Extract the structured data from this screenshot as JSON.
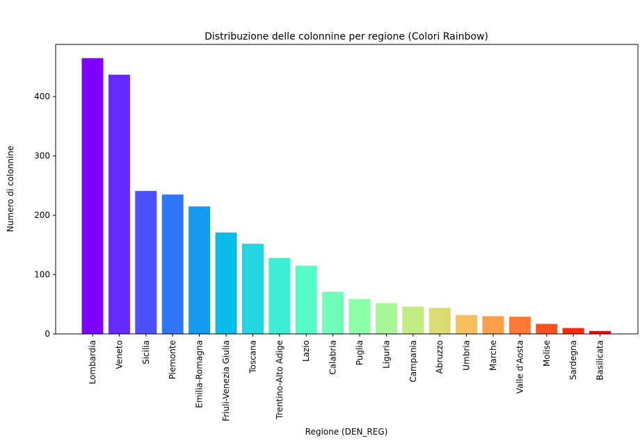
{
  "chart_data": {
    "type": "bar",
    "title": "Distribuzione delle colonnine per regione (Colori Rainbow)",
    "xlabel": "Regione (DEN_REG)",
    "ylabel": "Numero di colonnine",
    "ylim": [
      0,
      488
    ],
    "yticks": [
      "0",
      "100",
      "200",
      "300",
      "400"
    ],
    "grid": false,
    "categories": [
      "Lombardia",
      "Veneto",
      "Sicilia",
      "Piemonte",
      "Emilia-Romagna",
      "Friuli-Venezia Giulia",
      "Toscana",
      "Trentino-Alto Adige",
      "Lazio",
      "Calabria",
      "Puglia",
      "Liguria",
      "Campania",
      "Abruzzo",
      "Umbria",
      "Marche",
      "Valle d'Aosta",
      "Molise",
      "Sardegna",
      "Basilicata"
    ],
    "values": [
      465,
      437,
      241,
      235,
      215,
      171,
      152,
      128,
      115,
      71,
      59,
      52,
      46,
      44,
      32,
      30,
      29,
      17,
      10,
      5
    ],
    "colors": [
      "#8000ff",
      "#6629fe",
      "#4c50fc",
      "#3176f8",
      "#169bf2",
      "#07bbea",
      "#22d5e0",
      "#3deed4",
      "#55fac7",
      "#70feb8",
      "#8cfea8",
      "#a8f797",
      "#c3eb84",
      "#dcdb71",
      "#f8c05c",
      "#ff9e48",
      "#ff7834",
      "#ff501f",
      "#ff2a0f",
      "#ff0000"
    ]
  }
}
